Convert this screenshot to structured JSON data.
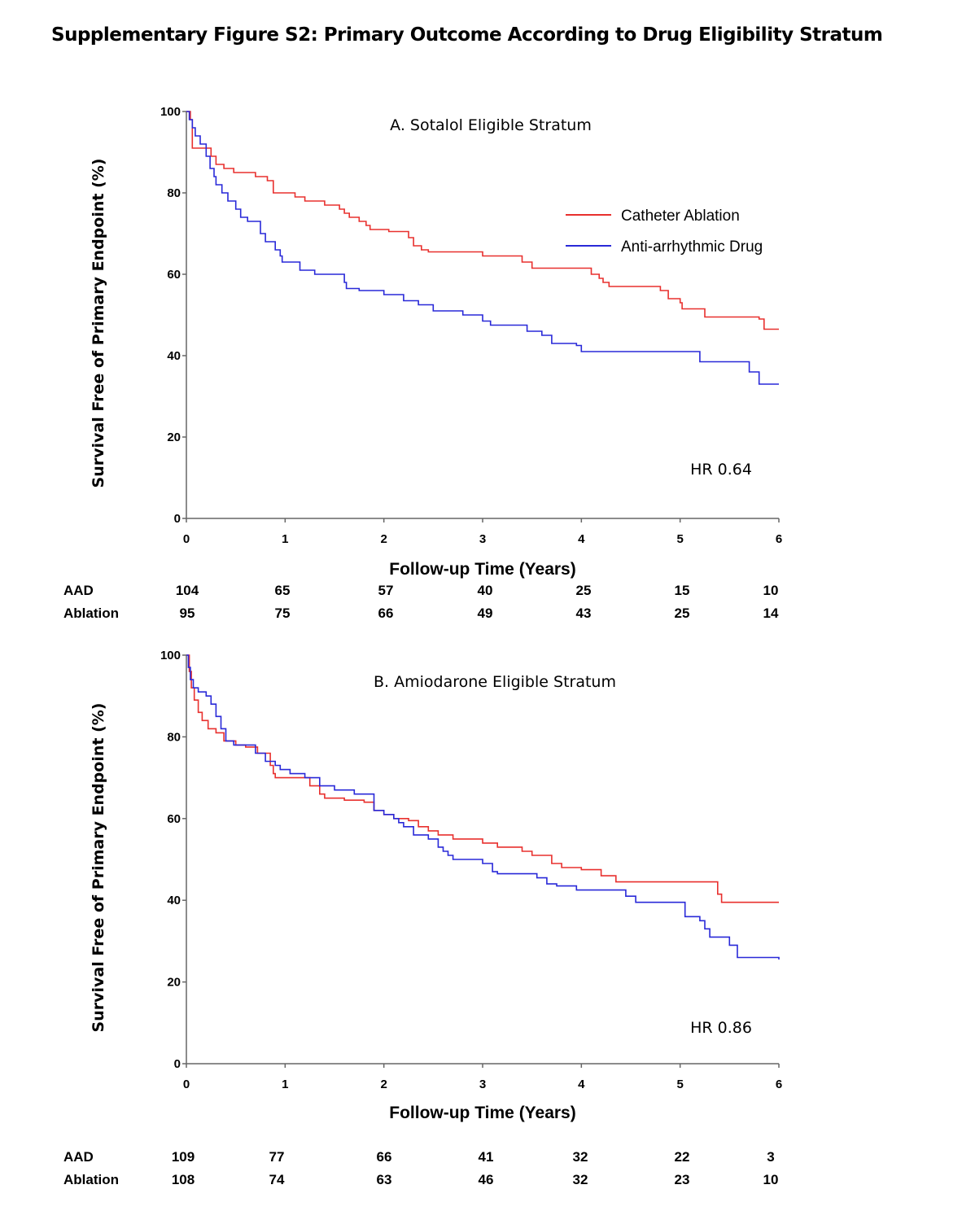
{
  "figure": {
    "title": "Supplementary Figure S2: Primary Outcome According to Drug Eligibility Stratum"
  },
  "chart_data": [
    {
      "type": "line",
      "title": "A. Sotalol Eligible Stratum",
      "xlabel": "Follow-up Time (Years)",
      "ylabel": "Survival Free of Primary Endpoint (%)",
      "xlim": [
        0,
        6
      ],
      "ylim": [
        0,
        100
      ],
      "x_ticks": [
        "0",
        "1",
        "2",
        "3",
        "4",
        "5",
        "6"
      ],
      "y_ticks": [
        "0",
        "20",
        "40",
        "60",
        "80",
        "100"
      ],
      "grid": false,
      "legend_position": "top-right",
      "annotation": "HR 0.64",
      "series": [
        {
          "name": "Catheter Ablation",
          "color": "#e8302e",
          "step": true,
          "points": [
            [
              0,
              100
            ],
            [
              0.04,
              98
            ],
            [
              0.06,
              91
            ],
            [
              0.25,
              89
            ],
            [
              0.3,
              87
            ],
            [
              0.38,
              86
            ],
            [
              0.48,
              85
            ],
            [
              0.7,
              84
            ],
            [
              0.82,
              83
            ],
            [
              0.88,
              80
            ],
            [
              1.1,
              79
            ],
            [
              1.2,
              78
            ],
            [
              1.4,
              77
            ],
            [
              1.55,
              76
            ],
            [
              1.6,
              75
            ],
            [
              1.65,
              74
            ],
            [
              1.75,
              73
            ],
            [
              1.82,
              72
            ],
            [
              1.86,
              71
            ],
            [
              2.05,
              70.5
            ],
            [
              2.25,
              69
            ],
            [
              2.3,
              67
            ],
            [
              2.38,
              66
            ],
            [
              2.45,
              65.5
            ],
            [
              3.0,
              64.5
            ],
            [
              3.4,
              63
            ],
            [
              3.5,
              61.5
            ],
            [
              4.1,
              60
            ],
            [
              4.18,
              59
            ],
            [
              4.22,
              58
            ],
            [
              4.28,
              57
            ],
            [
              4.8,
              56
            ],
            [
              4.88,
              54
            ],
            [
              5.0,
              53
            ],
            [
              5.02,
              51.5
            ],
            [
              5.25,
              49.5
            ],
            [
              5.8,
              49
            ],
            [
              5.85,
              46.5
            ],
            [
              6.0,
              46.5
            ]
          ]
        },
        {
          "name": "Anti-arrhythmic Drug",
          "color": "#2929d8",
          "step": true,
          "points": [
            [
              0,
              100
            ],
            [
              0.03,
              98
            ],
            [
              0.06,
              96
            ],
            [
              0.09,
              94
            ],
            [
              0.14,
              92
            ],
            [
              0.2,
              89
            ],
            [
              0.24,
              86
            ],
            [
              0.28,
              84
            ],
            [
              0.3,
              82
            ],
            [
              0.36,
              80
            ],
            [
              0.42,
              78
            ],
            [
              0.5,
              76
            ],
            [
              0.55,
              74
            ],
            [
              0.62,
              73
            ],
            [
              0.75,
              70
            ],
            [
              0.8,
              68
            ],
            [
              0.9,
              66
            ],
            [
              0.95,
              64.5
            ],
            [
              0.97,
              63
            ],
            [
              1.15,
              61
            ],
            [
              1.3,
              60
            ],
            [
              1.6,
              58
            ],
            [
              1.62,
              56.5
            ],
            [
              1.75,
              56
            ],
            [
              2.0,
              55
            ],
            [
              2.2,
              53.5
            ],
            [
              2.35,
              52.5
            ],
            [
              2.5,
              51
            ],
            [
              2.8,
              50
            ],
            [
              3.0,
              48.5
            ],
            [
              3.08,
              47.5
            ],
            [
              3.45,
              46
            ],
            [
              3.6,
              45
            ],
            [
              3.7,
              43
            ],
            [
              3.95,
              42.5
            ],
            [
              4.0,
              41
            ],
            [
              5.2,
              38.5
            ],
            [
              5.7,
              36
            ],
            [
              5.8,
              33
            ],
            [
              6.0,
              33
            ]
          ]
        }
      ],
      "at_risk": {
        "times": [
          0,
          1,
          2,
          3,
          4,
          5,
          6
        ],
        "rows": [
          {
            "label": "AAD",
            "values": [
              "104",
              "65",
              "57",
              "40",
              "25",
              "15",
              "10"
            ]
          },
          {
            "label": "Ablation",
            "values": [
              "95",
              "75",
              "66",
              "49",
              "43",
              "25",
              "14"
            ]
          }
        ]
      }
    },
    {
      "type": "line",
      "title": "B. Amiodarone Eligible Stratum",
      "xlabel": "Follow-up Time (Years)",
      "ylabel": "Survival Free of Primary Endpoint (%)",
      "xlim": [
        0,
        6
      ],
      "ylim": [
        0,
        100
      ],
      "x_ticks": [
        "0",
        "1",
        "2",
        "3",
        "4",
        "5",
        "6"
      ],
      "y_ticks": [
        "0",
        "20",
        "40",
        "60",
        "80",
        "100"
      ],
      "grid": false,
      "annotation": "HR 0.86",
      "series": [
        {
          "name": "Catheter Ablation",
          "color": "#e8302e",
          "step": true,
          "points": [
            [
              0,
              100
            ],
            [
              0.03,
              96
            ],
            [
              0.05,
              92
            ],
            [
              0.08,
              89
            ],
            [
              0.12,
              86
            ],
            [
              0.16,
              84
            ],
            [
              0.22,
              82
            ],
            [
              0.3,
              81
            ],
            [
              0.38,
              79
            ],
            [
              0.5,
              78
            ],
            [
              0.6,
              77.5
            ],
            [
              0.72,
              76
            ],
            [
              0.85,
              73
            ],
            [
              0.88,
              71
            ],
            [
              0.9,
              70
            ],
            [
              1.1,
              70
            ],
            [
              1.25,
              68
            ],
            [
              1.35,
              66
            ],
            [
              1.4,
              65
            ],
            [
              1.6,
              64.5
            ],
            [
              1.8,
              64
            ],
            [
              1.9,
              62
            ],
            [
              2.0,
              61
            ],
            [
              2.1,
              60
            ],
            [
              2.25,
              59.5
            ],
            [
              2.35,
              58
            ],
            [
              2.45,
              57
            ],
            [
              2.55,
              56
            ],
            [
              2.7,
              55
            ],
            [
              3.0,
              54
            ],
            [
              3.15,
              53
            ],
            [
              3.4,
              52
            ],
            [
              3.5,
              51
            ],
            [
              3.7,
              49
            ],
            [
              3.8,
              48
            ],
            [
              4.0,
              47.5
            ],
            [
              4.2,
              46
            ],
            [
              4.35,
              44.5
            ],
            [
              5.0,
              44.5
            ],
            [
              5.38,
              41.5
            ],
            [
              5.42,
              39.5
            ],
            [
              6.0,
              39.5
            ]
          ]
        },
        {
          "name": "Anti-arrhythmic Drug",
          "color": "#2929d8",
          "step": true,
          "points": [
            [
              0,
              100
            ],
            [
              0.02,
              97
            ],
            [
              0.04,
              94
            ],
            [
              0.07,
              92
            ],
            [
              0.12,
              91
            ],
            [
              0.2,
              90
            ],
            [
              0.25,
              88
            ],
            [
              0.3,
              85
            ],
            [
              0.35,
              82
            ],
            [
              0.4,
              79
            ],
            [
              0.48,
              78
            ],
            [
              0.7,
              76
            ],
            [
              0.8,
              74
            ],
            [
              0.9,
              73
            ],
            [
              0.95,
              72
            ],
            [
              1.05,
              71
            ],
            [
              1.2,
              70
            ],
            [
              1.35,
              68
            ],
            [
              1.5,
              67
            ],
            [
              1.7,
              66
            ],
            [
              1.9,
              62
            ],
            [
              2.0,
              61
            ],
            [
              2.1,
              60
            ],
            [
              2.15,
              59
            ],
            [
              2.2,
              58
            ],
            [
              2.3,
              56
            ],
            [
              2.45,
              55
            ],
            [
              2.55,
              53
            ],
            [
              2.6,
              52
            ],
            [
              2.65,
              51
            ],
            [
              2.7,
              50
            ],
            [
              3.0,
              49
            ],
            [
              3.1,
              47
            ],
            [
              3.15,
              46.5
            ],
            [
              3.55,
              45.5
            ],
            [
              3.65,
              44
            ],
            [
              3.75,
              43.5
            ],
            [
              3.95,
              42.5
            ],
            [
              4.45,
              41
            ],
            [
              4.55,
              39.5
            ],
            [
              5.05,
              36
            ],
            [
              5.2,
              35
            ],
            [
              5.25,
              33
            ],
            [
              5.3,
              31
            ],
            [
              5.5,
              29
            ],
            [
              5.58,
              26
            ],
            [
              6.0,
              25.5
            ]
          ]
        }
      ],
      "at_risk": {
        "times": [
          0,
          1,
          2,
          3,
          4,
          5,
          6
        ],
        "rows": [
          {
            "label": "AAD",
            "values": [
              "109",
              "77",
              "66",
              "41",
              "32",
              "22",
              "3"
            ]
          },
          {
            "label": "Ablation",
            "values": [
              "108",
              "74",
              "63",
              "46",
              "32",
              "23",
              "10"
            ]
          }
        ]
      }
    }
  ]
}
